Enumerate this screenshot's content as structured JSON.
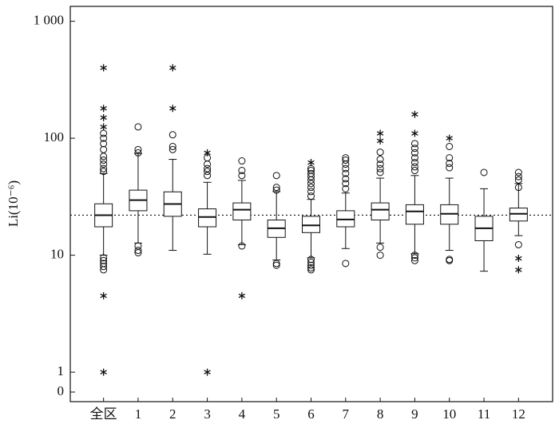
{
  "chart_data": {
    "type": "box",
    "y_label": "Li(10⁻⁶)",
    "categories": [
      "全区",
      "1",
      "2",
      "3",
      "4",
      "5",
      "6",
      "7",
      "8",
      "9",
      "10",
      "11",
      "12"
    ],
    "boxes": [
      {
        "low": 10,
        "q1": 17.5,
        "median": 22,
        "q3": 27.5,
        "high": 50,
        "outliers": [
          52,
          55,
          60,
          65,
          70,
          80,
          90,
          100,
          110,
          9.5,
          9,
          8.5,
          8,
          7.5
        ],
        "extremes": [
          400,
          180,
          150,
          125,
          4.5,
          1
        ]
      },
      {
        "low": 12.7,
        "q1": 24,
        "median": 29.6,
        "q3": 36,
        "high": 74,
        "outliers": [
          125,
          80,
          75,
          12,
          11,
          10.5
        ],
        "extremes": []
      },
      {
        "low": 11,
        "q1": 21.5,
        "median": 27.4,
        "q3": 34.8,
        "high": 66,
        "outliers": [
          107,
          85,
          80
        ],
        "extremes": [
          400,
          180
        ]
      },
      {
        "low": 10.2,
        "q1": 17.5,
        "median": 21.2,
        "q3": 24.9,
        "high": 42,
        "outliers": [
          48,
          52,
          55,
          60,
          68
        ],
        "extremes": [
          75,
          1
        ]
      },
      {
        "low": 12.3,
        "q1": 20,
        "median": 24.5,
        "q3": 28,
        "high": 43.6,
        "outliers": [
          64,
          53,
          48,
          12
        ],
        "extremes": [
          4.5
        ]
      },
      {
        "low": 9.1,
        "q1": 14.2,
        "median": 17,
        "q3": 20,
        "high": 35,
        "outliers": [
          48,
          38,
          36,
          8.5,
          8.2
        ],
        "extremes": []
      },
      {
        "low": 9.5,
        "q1": 15.6,
        "median": 18,
        "q3": 21.5,
        "high": 30,
        "outliers": [
          32,
          35,
          38,
          41,
          44,
          47,
          50,
          53,
          55,
          9.2,
          8.7,
          8.2,
          7.8,
          7.5
        ],
        "extremes": [
          62
        ]
      },
      {
        "low": 11.4,
        "q1": 17.5,
        "median": 20.2,
        "q3": 24,
        "high": 34,
        "outliers": [
          37,
          41,
          45,
          50,
          55,
          60,
          65,
          68,
          8.5
        ],
        "extremes": []
      },
      {
        "low": 12.7,
        "q1": 20,
        "median": 24.5,
        "q3": 28,
        "high": 45.6,
        "outliers": [
          51,
          55,
          60,
          66,
          76,
          11.7,
          10
        ],
        "extremes": [
          110,
          95
        ]
      },
      {
        "low": 10.3,
        "q1": 18.4,
        "median": 23.7,
        "q3": 27,
        "high": 48,
        "outliers": [
          53,
          57,
          62,
          68,
          75,
          82,
          90,
          10,
          9.5,
          9
        ],
        "extremes": [
          160,
          110
        ]
      },
      {
        "low": 11,
        "q1": 18.4,
        "median": 22.6,
        "q3": 27,
        "high": 45.6,
        "outliers": [
          85,
          68,
          61,
          56,
          9.2,
          9
        ],
        "extremes": [
          100
        ]
      },
      {
        "low": 7.3,
        "q1": 13.3,
        "median": 17,
        "q3": 21.5,
        "high": 37,
        "outliers": [
          51
        ],
        "extremes": []
      },
      {
        "low": 14.7,
        "q1": 19.6,
        "median": 22.6,
        "q3": 25.3,
        "high": 41,
        "outliers": [
          51,
          47,
          44,
          38,
          12.3
        ],
        "extremes": [
          9.4,
          7.5
        ]
      }
    ],
    "ref_line": 22,
    "log_scale": true,
    "ylim": [
      0.56,
      1340
    ],
    "yticks": [
      0,
      1,
      10,
      100,
      {
        "value": 1000,
        "label": "1 000"
      }
    ]
  }
}
